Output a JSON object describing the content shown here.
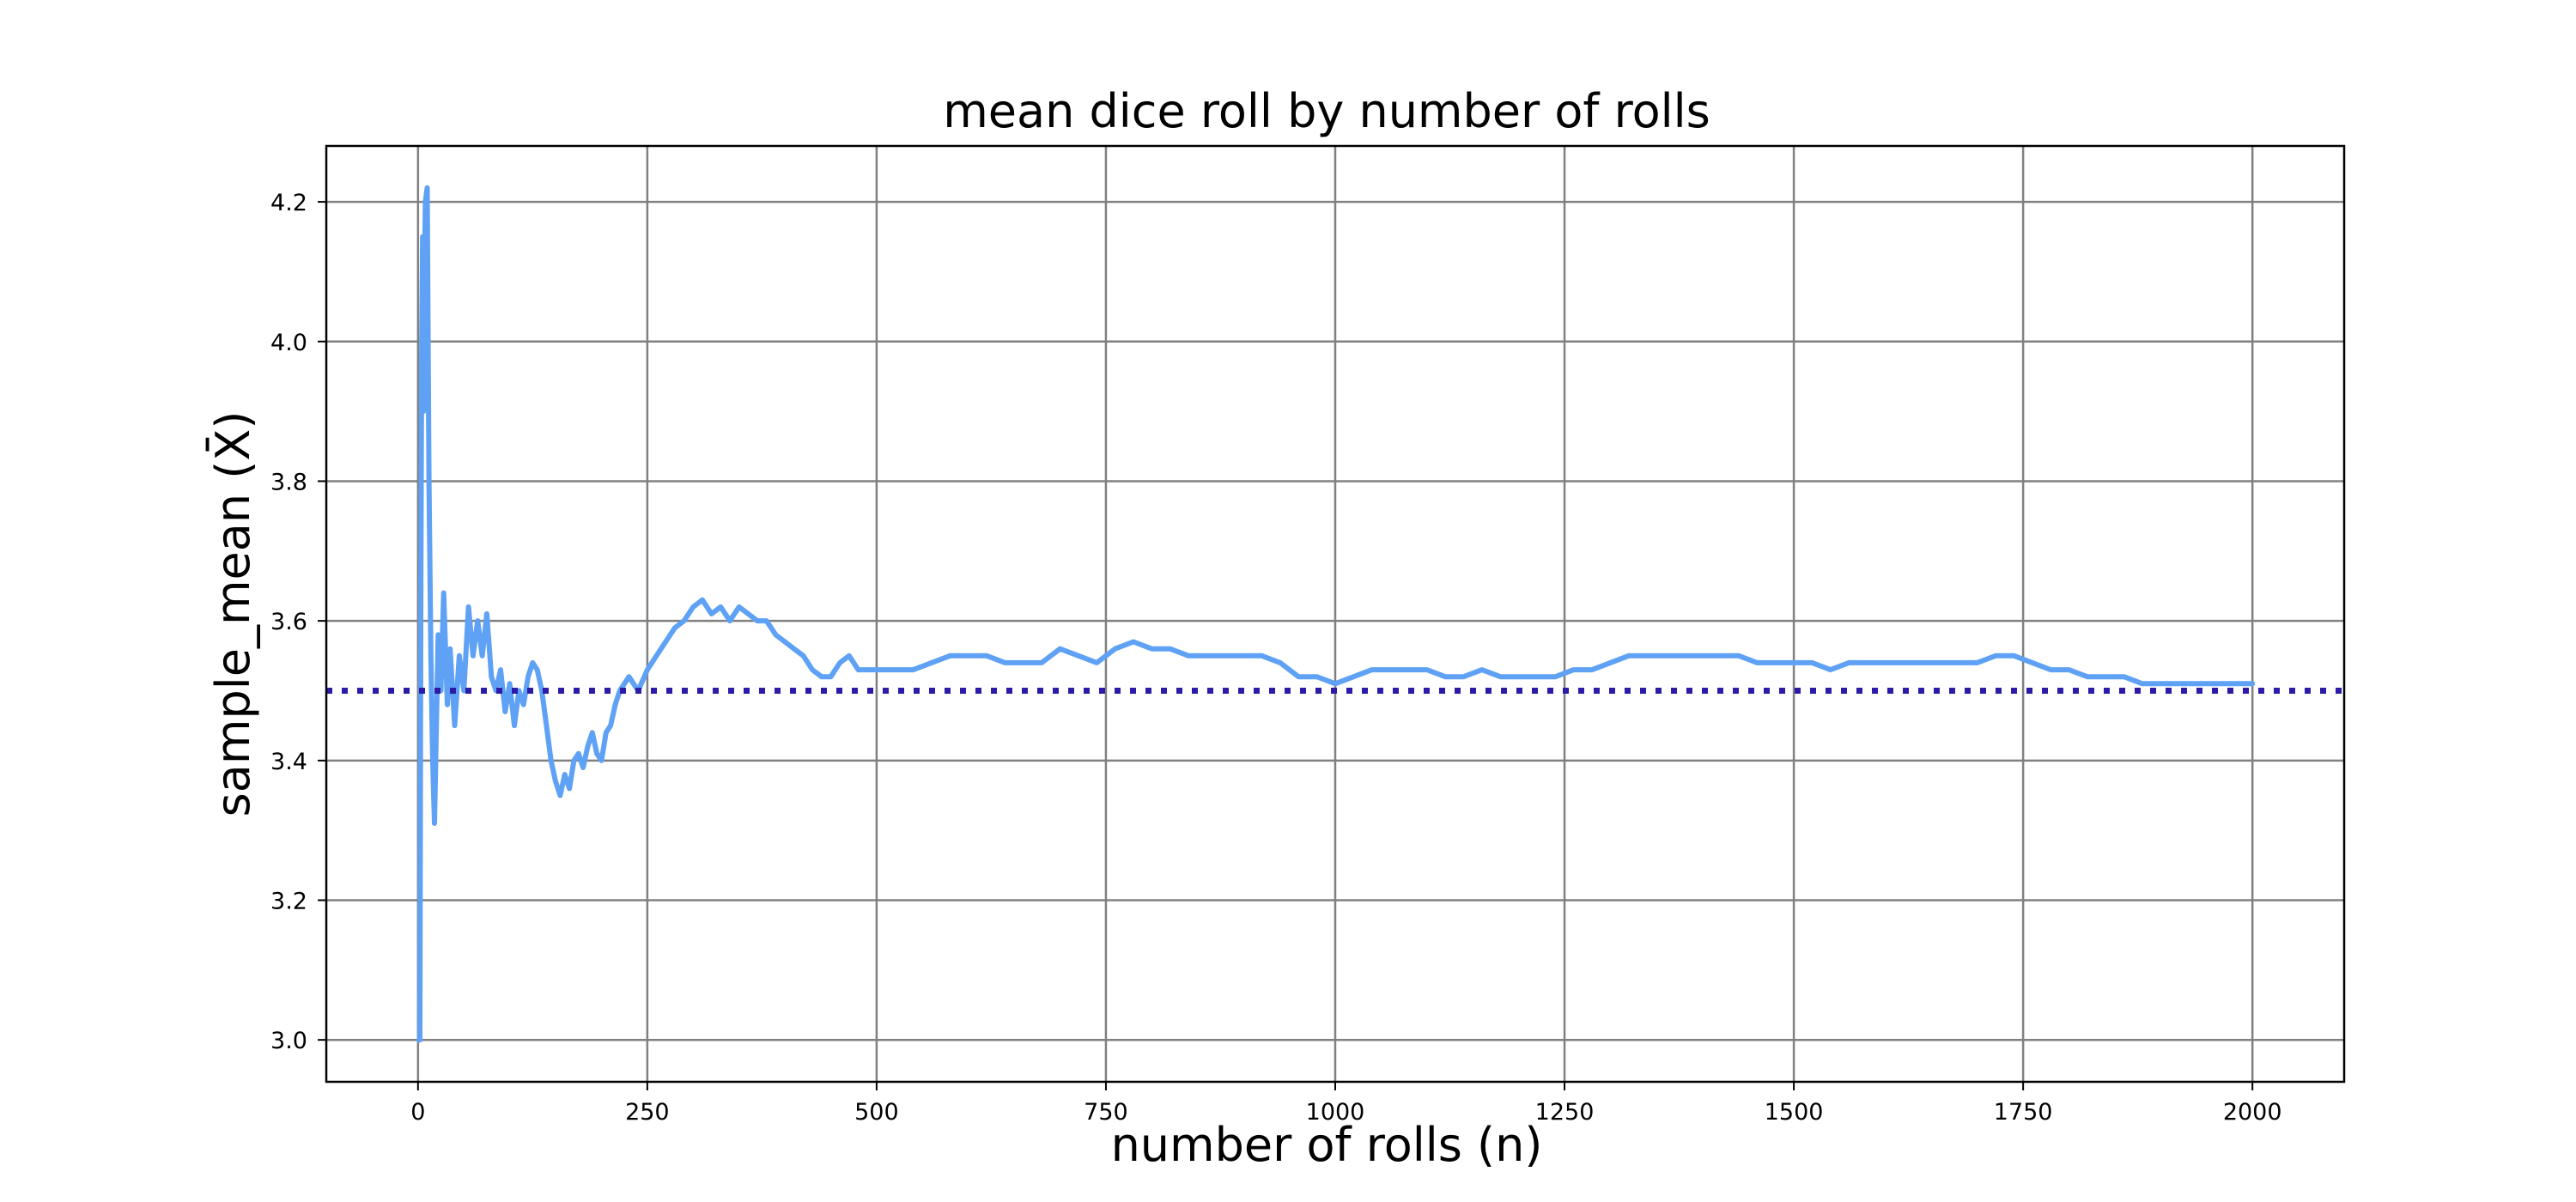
{
  "chart_data": {
    "type": "line",
    "title": "mean dice roll by number of rolls",
    "xlabel": "number of rolls (n)",
    "ylabel": "sample_mean (X̄)",
    "xlim": [
      -100,
      2100
    ],
    "ylim": [
      2.94,
      4.28
    ],
    "xticks": [
      0,
      250,
      500,
      750,
      1000,
      1250,
      1500,
      1750,
      2000
    ],
    "yticks": [
      3.0,
      3.2,
      3.4,
      3.6,
      3.8,
      4.0,
      4.2
    ],
    "xtick_labels": [
      "0",
      "250",
      "500",
      "750",
      "1000",
      "1250",
      "1500",
      "1750",
      "2000"
    ],
    "ytick_labels": [
      "3.0",
      "3.2",
      "3.4",
      "3.6",
      "3.8",
      "4.0",
      "4.2"
    ],
    "grid": true,
    "legend": "none",
    "series": [
      {
        "style": "solid",
        "color": "#5ea1f5",
        "points": [
          [
            1,
            3.0
          ],
          [
            2,
            3.0
          ],
          [
            3,
            3.6
          ],
          [
            4,
            4.0
          ],
          [
            5,
            4.15
          ],
          [
            6,
            3.9
          ],
          [
            7,
            4.1
          ],
          [
            8,
            4.2
          ],
          [
            10,
            4.22
          ],
          [
            12,
            3.8
          ],
          [
            14,
            3.55
          ],
          [
            16,
            3.4
          ],
          [
            18,
            3.31
          ],
          [
            20,
            3.45
          ],
          [
            22,
            3.58
          ],
          [
            25,
            3.5
          ],
          [
            28,
            3.64
          ],
          [
            32,
            3.48
          ],
          [
            35,
            3.56
          ],
          [
            40,
            3.45
          ],
          [
            45,
            3.55
          ],
          [
            50,
            3.5
          ],
          [
            55,
            3.62
          ],
          [
            60,
            3.55
          ],
          [
            65,
            3.6
          ],
          [
            70,
            3.55
          ],
          [
            75,
            3.61
          ],
          [
            80,
            3.52
          ],
          [
            85,
            3.5
          ],
          [
            90,
            3.53
          ],
          [
            95,
            3.47
          ],
          [
            100,
            3.51
          ],
          [
            105,
            3.45
          ],
          [
            110,
            3.5
          ],
          [
            115,
            3.48
          ],
          [
            120,
            3.52
          ],
          [
            125,
            3.54
          ],
          [
            130,
            3.53
          ],
          [
            135,
            3.5
          ],
          [
            140,
            3.45
          ],
          [
            145,
            3.4
          ],
          [
            150,
            3.37
          ],
          [
            155,
            3.35
          ],
          [
            160,
            3.38
          ],
          [
            165,
            3.36
          ],
          [
            170,
            3.4
          ],
          [
            175,
            3.41
          ],
          [
            180,
            3.39
          ],
          [
            185,
            3.42
          ],
          [
            190,
            3.44
          ],
          [
            195,
            3.41
          ],
          [
            200,
            3.4
          ],
          [
            205,
            3.44
          ],
          [
            210,
            3.45
          ],
          [
            215,
            3.48
          ],
          [
            220,
            3.5
          ],
          [
            230,
            3.52
          ],
          [
            240,
            3.5
          ],
          [
            250,
            3.53
          ],
          [
            260,
            3.55
          ],
          [
            270,
            3.57
          ],
          [
            280,
            3.59
          ],
          [
            290,
            3.6
          ],
          [
            300,
            3.62
          ],
          [
            310,
            3.63
          ],
          [
            320,
            3.61
          ],
          [
            330,
            3.62
          ],
          [
            340,
            3.6
          ],
          [
            350,
            3.62
          ],
          [
            360,
            3.61
          ],
          [
            370,
            3.6
          ],
          [
            380,
            3.6
          ],
          [
            390,
            3.58
          ],
          [
            400,
            3.57
          ],
          [
            410,
            3.56
          ],
          [
            420,
            3.55
          ],
          [
            430,
            3.53
          ],
          [
            440,
            3.52
          ],
          [
            450,
            3.52
          ],
          [
            460,
            3.54
          ],
          [
            470,
            3.55
          ],
          [
            480,
            3.53
          ],
          [
            500,
            3.53
          ],
          [
            520,
            3.53
          ],
          [
            540,
            3.53
          ],
          [
            560,
            3.54
          ],
          [
            580,
            3.55
          ],
          [
            600,
            3.55
          ],
          [
            620,
            3.55
          ],
          [
            640,
            3.54
          ],
          [
            660,
            3.54
          ],
          [
            680,
            3.54
          ],
          [
            700,
            3.56
          ],
          [
            720,
            3.55
          ],
          [
            740,
            3.54
          ],
          [
            750,
            3.55
          ],
          [
            760,
            3.56
          ],
          [
            780,
            3.57
          ],
          [
            800,
            3.56
          ],
          [
            820,
            3.56
          ],
          [
            840,
            3.55
          ],
          [
            860,
            3.55
          ],
          [
            880,
            3.55
          ],
          [
            900,
            3.55
          ],
          [
            920,
            3.55
          ],
          [
            940,
            3.54
          ],
          [
            960,
            3.52
          ],
          [
            980,
            3.52
          ],
          [
            1000,
            3.51
          ],
          [
            1020,
            3.52
          ],
          [
            1040,
            3.53
          ],
          [
            1060,
            3.53
          ],
          [
            1080,
            3.53
          ],
          [
            1100,
            3.53
          ],
          [
            1120,
            3.52
          ],
          [
            1140,
            3.52
          ],
          [
            1160,
            3.53
          ],
          [
            1180,
            3.52
          ],
          [
            1200,
            3.52
          ],
          [
            1220,
            3.52
          ],
          [
            1240,
            3.52
          ],
          [
            1260,
            3.53
          ],
          [
            1280,
            3.53
          ],
          [
            1300,
            3.54
          ],
          [
            1320,
            3.55
          ],
          [
            1340,
            3.55
          ],
          [
            1360,
            3.55
          ],
          [
            1380,
            3.55
          ],
          [
            1400,
            3.55
          ],
          [
            1420,
            3.55
          ],
          [
            1440,
            3.55
          ],
          [
            1460,
            3.54
          ],
          [
            1480,
            3.54
          ],
          [
            1500,
            3.54
          ],
          [
            1520,
            3.54
          ],
          [
            1540,
            3.53
          ],
          [
            1560,
            3.54
          ],
          [
            1580,
            3.54
          ],
          [
            1600,
            3.54
          ],
          [
            1620,
            3.54
          ],
          [
            1640,
            3.54
          ],
          [
            1660,
            3.54
          ],
          [
            1680,
            3.54
          ],
          [
            1700,
            3.54
          ],
          [
            1720,
            3.55
          ],
          [
            1740,
            3.55
          ],
          [
            1760,
            3.54
          ],
          [
            1780,
            3.53
          ],
          [
            1800,
            3.53
          ],
          [
            1820,
            3.52
          ],
          [
            1840,
            3.52
          ],
          [
            1860,
            3.52
          ],
          [
            1880,
            3.51
          ],
          [
            1900,
            3.51
          ],
          [
            1920,
            3.51
          ],
          [
            1940,
            3.51
          ],
          [
            1960,
            3.51
          ],
          [
            1980,
            3.51
          ],
          [
            2000,
            3.51
          ]
        ]
      },
      {
        "style": "dotted",
        "color": "#2b1ba6",
        "points": [
          [
            -100,
            3.5
          ],
          [
            2100,
            3.5
          ]
        ]
      }
    ]
  }
}
